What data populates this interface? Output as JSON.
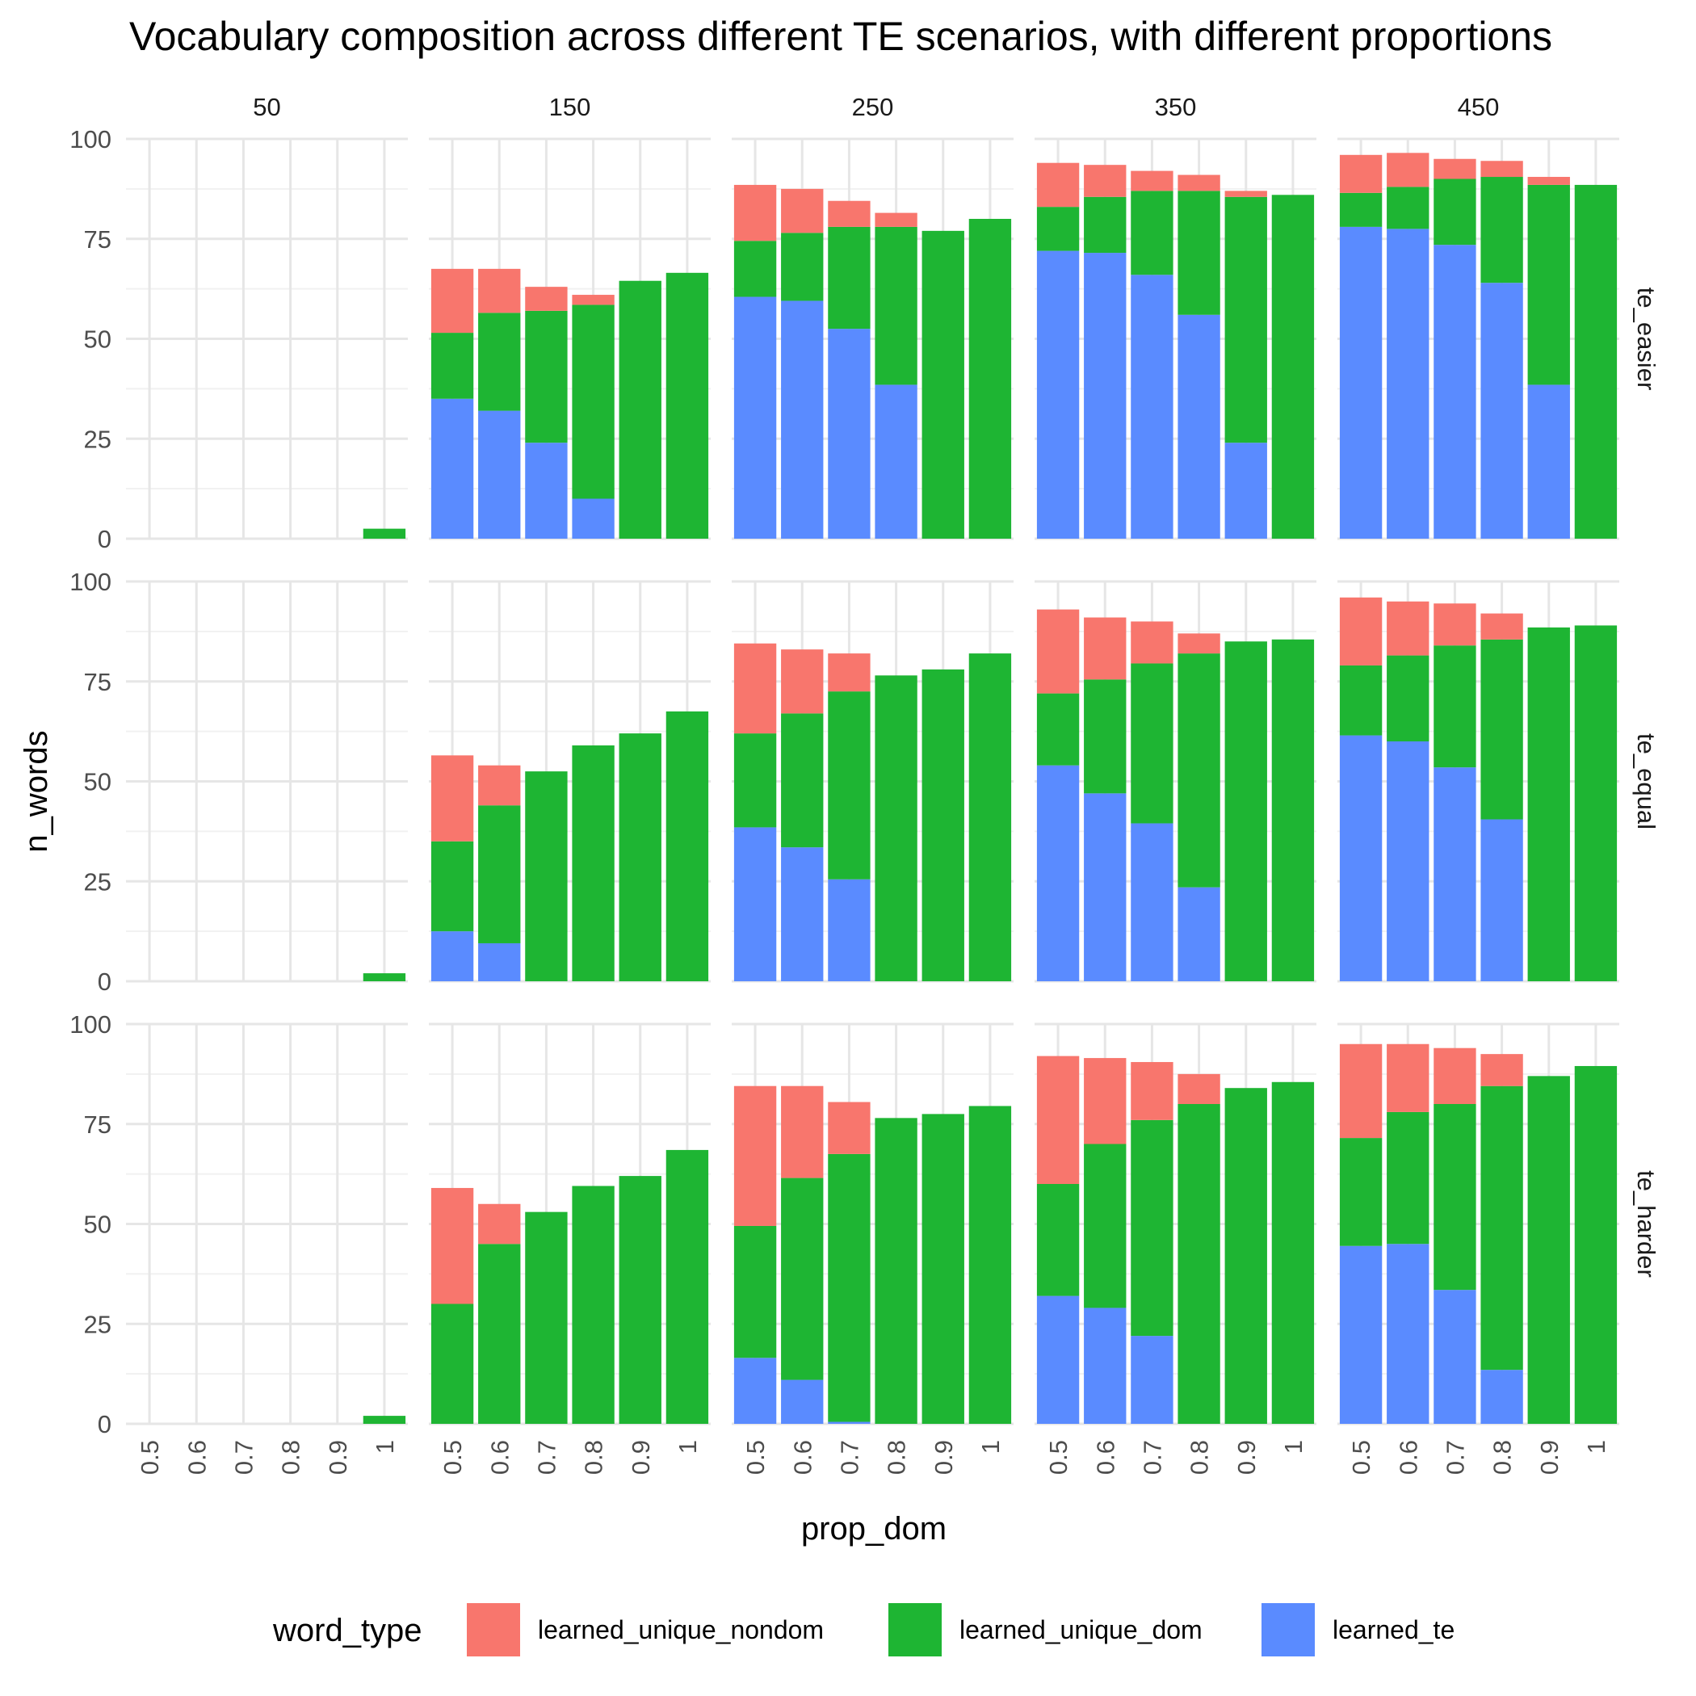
{
  "chart_data": {
    "type": "bar",
    "stacked": true,
    "title": "Vocabulary composition across different TE scenarios, with different proportions",
    "xlabel": "prop_dom",
    "ylabel": "n_words",
    "ylim": [
      0,
      100
    ],
    "y_ticks": [
      "0",
      "25",
      "50",
      "75",
      "100"
    ],
    "y_tick_values": [
      0,
      25,
      50,
      75,
      100
    ],
    "categories": [
      "0.5",
      "0.6",
      "0.7",
      "0.8",
      "0.9",
      "1"
    ],
    "facet_columns": [
      "50",
      "150",
      "250",
      "350",
      "450"
    ],
    "facet_rows": [
      "te_easier",
      "te_equal",
      "te_harder"
    ],
    "grid": true,
    "legend_position": "bottom",
    "legend_title": "word_type",
    "series": [
      {
        "name": "learned_unique_nondom",
        "color": "#F8766D"
      },
      {
        "name": "learned_unique_dom",
        "color": "#1EB533"
      },
      {
        "name": "learned_te",
        "color": "#5A8BFF"
      }
    ],
    "panels": [
      {
        "row": "te_easier",
        "col": "50",
        "learned_te": [
          0,
          0,
          0,
          0,
          0,
          0
        ],
        "learned_unique_dom": [
          0,
          0,
          0,
          0,
          0,
          2.5
        ],
        "learned_unique_nondom": [
          0,
          0,
          0,
          0,
          0,
          0
        ]
      },
      {
        "row": "te_easier",
        "col": "150",
        "learned_te": [
          35,
          32,
          24,
          10,
          0,
          0
        ],
        "learned_unique_dom": [
          16.5,
          24.5,
          33,
          48.5,
          64.5,
          66.5
        ],
        "learned_unique_nondom": [
          16,
          11,
          6,
          2.5,
          0,
          0
        ]
      },
      {
        "row": "te_easier",
        "col": "250",
        "learned_te": [
          60.5,
          59.5,
          52.5,
          38.5,
          0,
          0
        ],
        "learned_unique_dom": [
          14,
          17,
          25.5,
          39.5,
          77,
          80
        ],
        "learned_unique_nondom": [
          14,
          11,
          6.5,
          3.5,
          0,
          0
        ]
      },
      {
        "row": "te_easier",
        "col": "350",
        "learned_te": [
          72,
          71.5,
          66,
          56,
          24,
          0
        ],
        "learned_unique_dom": [
          11,
          14,
          21,
          31,
          61.5,
          86
        ],
        "learned_unique_nondom": [
          11,
          8,
          5,
          4,
          1.5,
          0
        ]
      },
      {
        "row": "te_easier",
        "col": "450",
        "learned_te": [
          78,
          77.5,
          73.5,
          64,
          38.5,
          0
        ],
        "learned_unique_dom": [
          8.5,
          10.5,
          16.5,
          26.5,
          50,
          88.5
        ],
        "learned_unique_nondom": [
          9.5,
          8.5,
          5,
          4,
          2,
          0
        ]
      },
      {
        "row": "te_equal",
        "col": "50",
        "learned_te": [
          0,
          0,
          0,
          0,
          0,
          0
        ],
        "learned_unique_dom": [
          0,
          0,
          0,
          0,
          0,
          2
        ],
        "learned_unique_nondom": [
          0,
          0,
          0,
          0,
          0,
          0
        ]
      },
      {
        "row": "te_equal",
        "col": "150",
        "learned_te": [
          12.5,
          9.5,
          0,
          0,
          0,
          0
        ],
        "learned_unique_dom": [
          22.5,
          34.5,
          52.5,
          59,
          62,
          67.5
        ],
        "learned_unique_nondom": [
          21.5,
          10,
          0,
          0,
          0,
          0
        ]
      },
      {
        "row": "te_equal",
        "col": "250",
        "learned_te": [
          38.5,
          33.5,
          25.5,
          0,
          0,
          0
        ],
        "learned_unique_dom": [
          23.5,
          33.5,
          47,
          76.5,
          78,
          82
        ],
        "learned_unique_nondom": [
          22.5,
          16,
          9.5,
          0,
          0,
          0
        ]
      },
      {
        "row": "te_equal",
        "col": "350",
        "learned_te": [
          54,
          47,
          39.5,
          23.5,
          0,
          0
        ],
        "learned_unique_dom": [
          18,
          28.5,
          40,
          58.5,
          85,
          85.5
        ],
        "learned_unique_nondom": [
          21,
          15.5,
          10.5,
          5,
          0,
          0
        ]
      },
      {
        "row": "te_equal",
        "col": "450",
        "learned_te": [
          61.5,
          60,
          53.5,
          40.5,
          0,
          0
        ],
        "learned_unique_dom": [
          17.5,
          21.5,
          30.5,
          45,
          88.5,
          89
        ],
        "learned_unique_nondom": [
          17,
          13.5,
          10.5,
          6.5,
          0,
          0
        ]
      },
      {
        "row": "te_harder",
        "col": "50",
        "learned_te": [
          0,
          0,
          0,
          0,
          0,
          0
        ],
        "learned_unique_dom": [
          0,
          0,
          0,
          0,
          0,
          2
        ],
        "learned_unique_nondom": [
          0,
          0,
          0,
          0,
          0,
          0
        ]
      },
      {
        "row": "te_harder",
        "col": "150",
        "learned_te": [
          0,
          0,
          0,
          0,
          0,
          0
        ],
        "learned_unique_dom": [
          30,
          45,
          53,
          59.5,
          62,
          68.5
        ],
        "learned_unique_nondom": [
          29,
          10,
          0,
          0,
          0,
          0
        ]
      },
      {
        "row": "te_harder",
        "col": "250",
        "learned_te": [
          16.5,
          11,
          0.5,
          0,
          0,
          0
        ],
        "learned_unique_dom": [
          33,
          50.5,
          67,
          76.5,
          77.5,
          79.5
        ],
        "learned_unique_nondom": [
          35,
          23,
          13,
          0,
          0,
          0
        ]
      },
      {
        "row": "te_harder",
        "col": "350",
        "learned_te": [
          32,
          29,
          22,
          0,
          0,
          0
        ],
        "learned_unique_dom": [
          28,
          41,
          54,
          80,
          84,
          85.5
        ],
        "learned_unique_nondom": [
          32,
          21.5,
          14.5,
          7.5,
          0,
          0
        ]
      },
      {
        "row": "te_harder",
        "col": "450",
        "learned_te": [
          44.5,
          45,
          33.5,
          13.5,
          0,
          0
        ],
        "learned_unique_dom": [
          27,
          33,
          46.5,
          71,
          87,
          89.5
        ],
        "learned_unique_nondom": [
          23.5,
          17,
          14,
          8,
          0,
          0
        ]
      }
    ]
  }
}
